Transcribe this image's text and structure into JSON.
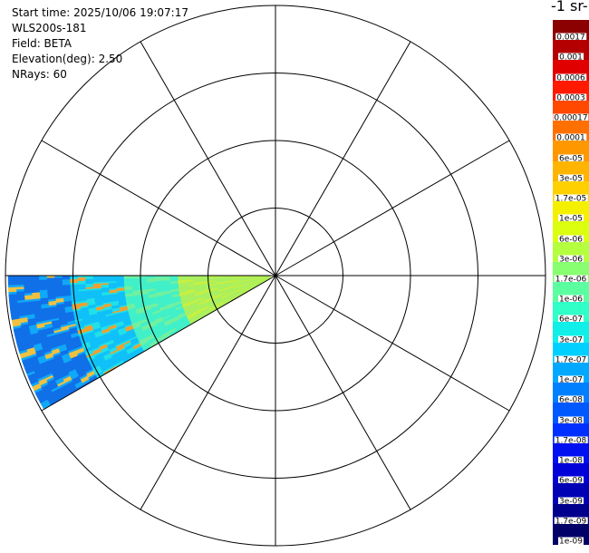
{
  "header": {
    "start_time": "Start time: 2025/10/06 19:07:17",
    "instrument": "WLS200s-181",
    "field": "Field: BETA",
    "elevation": "Elevation(deg): 2.50",
    "nrays": "NRays: 60"
  },
  "colorbar": {
    "title": "-1 sr-",
    "labels": [
      "0.0017",
      "0.001",
      "0.0006",
      "0.0003",
      "0.00017",
      "0.0001",
      "6e-05",
      "3e-05",
      "1.7e-05",
      "1e-05",
      "6e-06",
      "3e-06",
      "1.7e-06",
      "1e-06",
      "6e-07",
      "3e-07",
      "1.7e-07",
      "1e-07",
      "6e-08",
      "3e-08",
      "1.7e-08",
      "1e-08",
      "6e-09",
      "3e-09",
      "1.7e-09",
      "1e-09"
    ],
    "colors": [
      "#8b0000",
      "#b40000",
      "#e00000",
      "#ff1a00",
      "#ff4800",
      "#ff7000",
      "#ff9800",
      "#ffb400",
      "#ffd000",
      "#f5f000",
      "#dcff10",
      "#b4ff40",
      "#88ff70",
      "#5cffa0",
      "#30ffc8",
      "#10f0e8",
      "#00d0ff",
      "#00a8ff",
      "#0080ff",
      "#0058ff",
      "#0030ff",
      "#0010f0",
      "#0000d8",
      "#0000b4",
      "#00008c",
      "#000068"
    ]
  },
  "chart_data": {
    "type": "heatmap",
    "projection": "polar (PPI scan)",
    "field": "BETA",
    "elevation_deg": 2.5,
    "n_rays": 60,
    "azimuth_coverage_deg": [
      240,
      270
    ],
    "range_rings": 4,
    "spokes_every_deg": 30,
    "color_scale": "log",
    "value_range": [
      1e-09,
      0.0017
    ]
  }
}
